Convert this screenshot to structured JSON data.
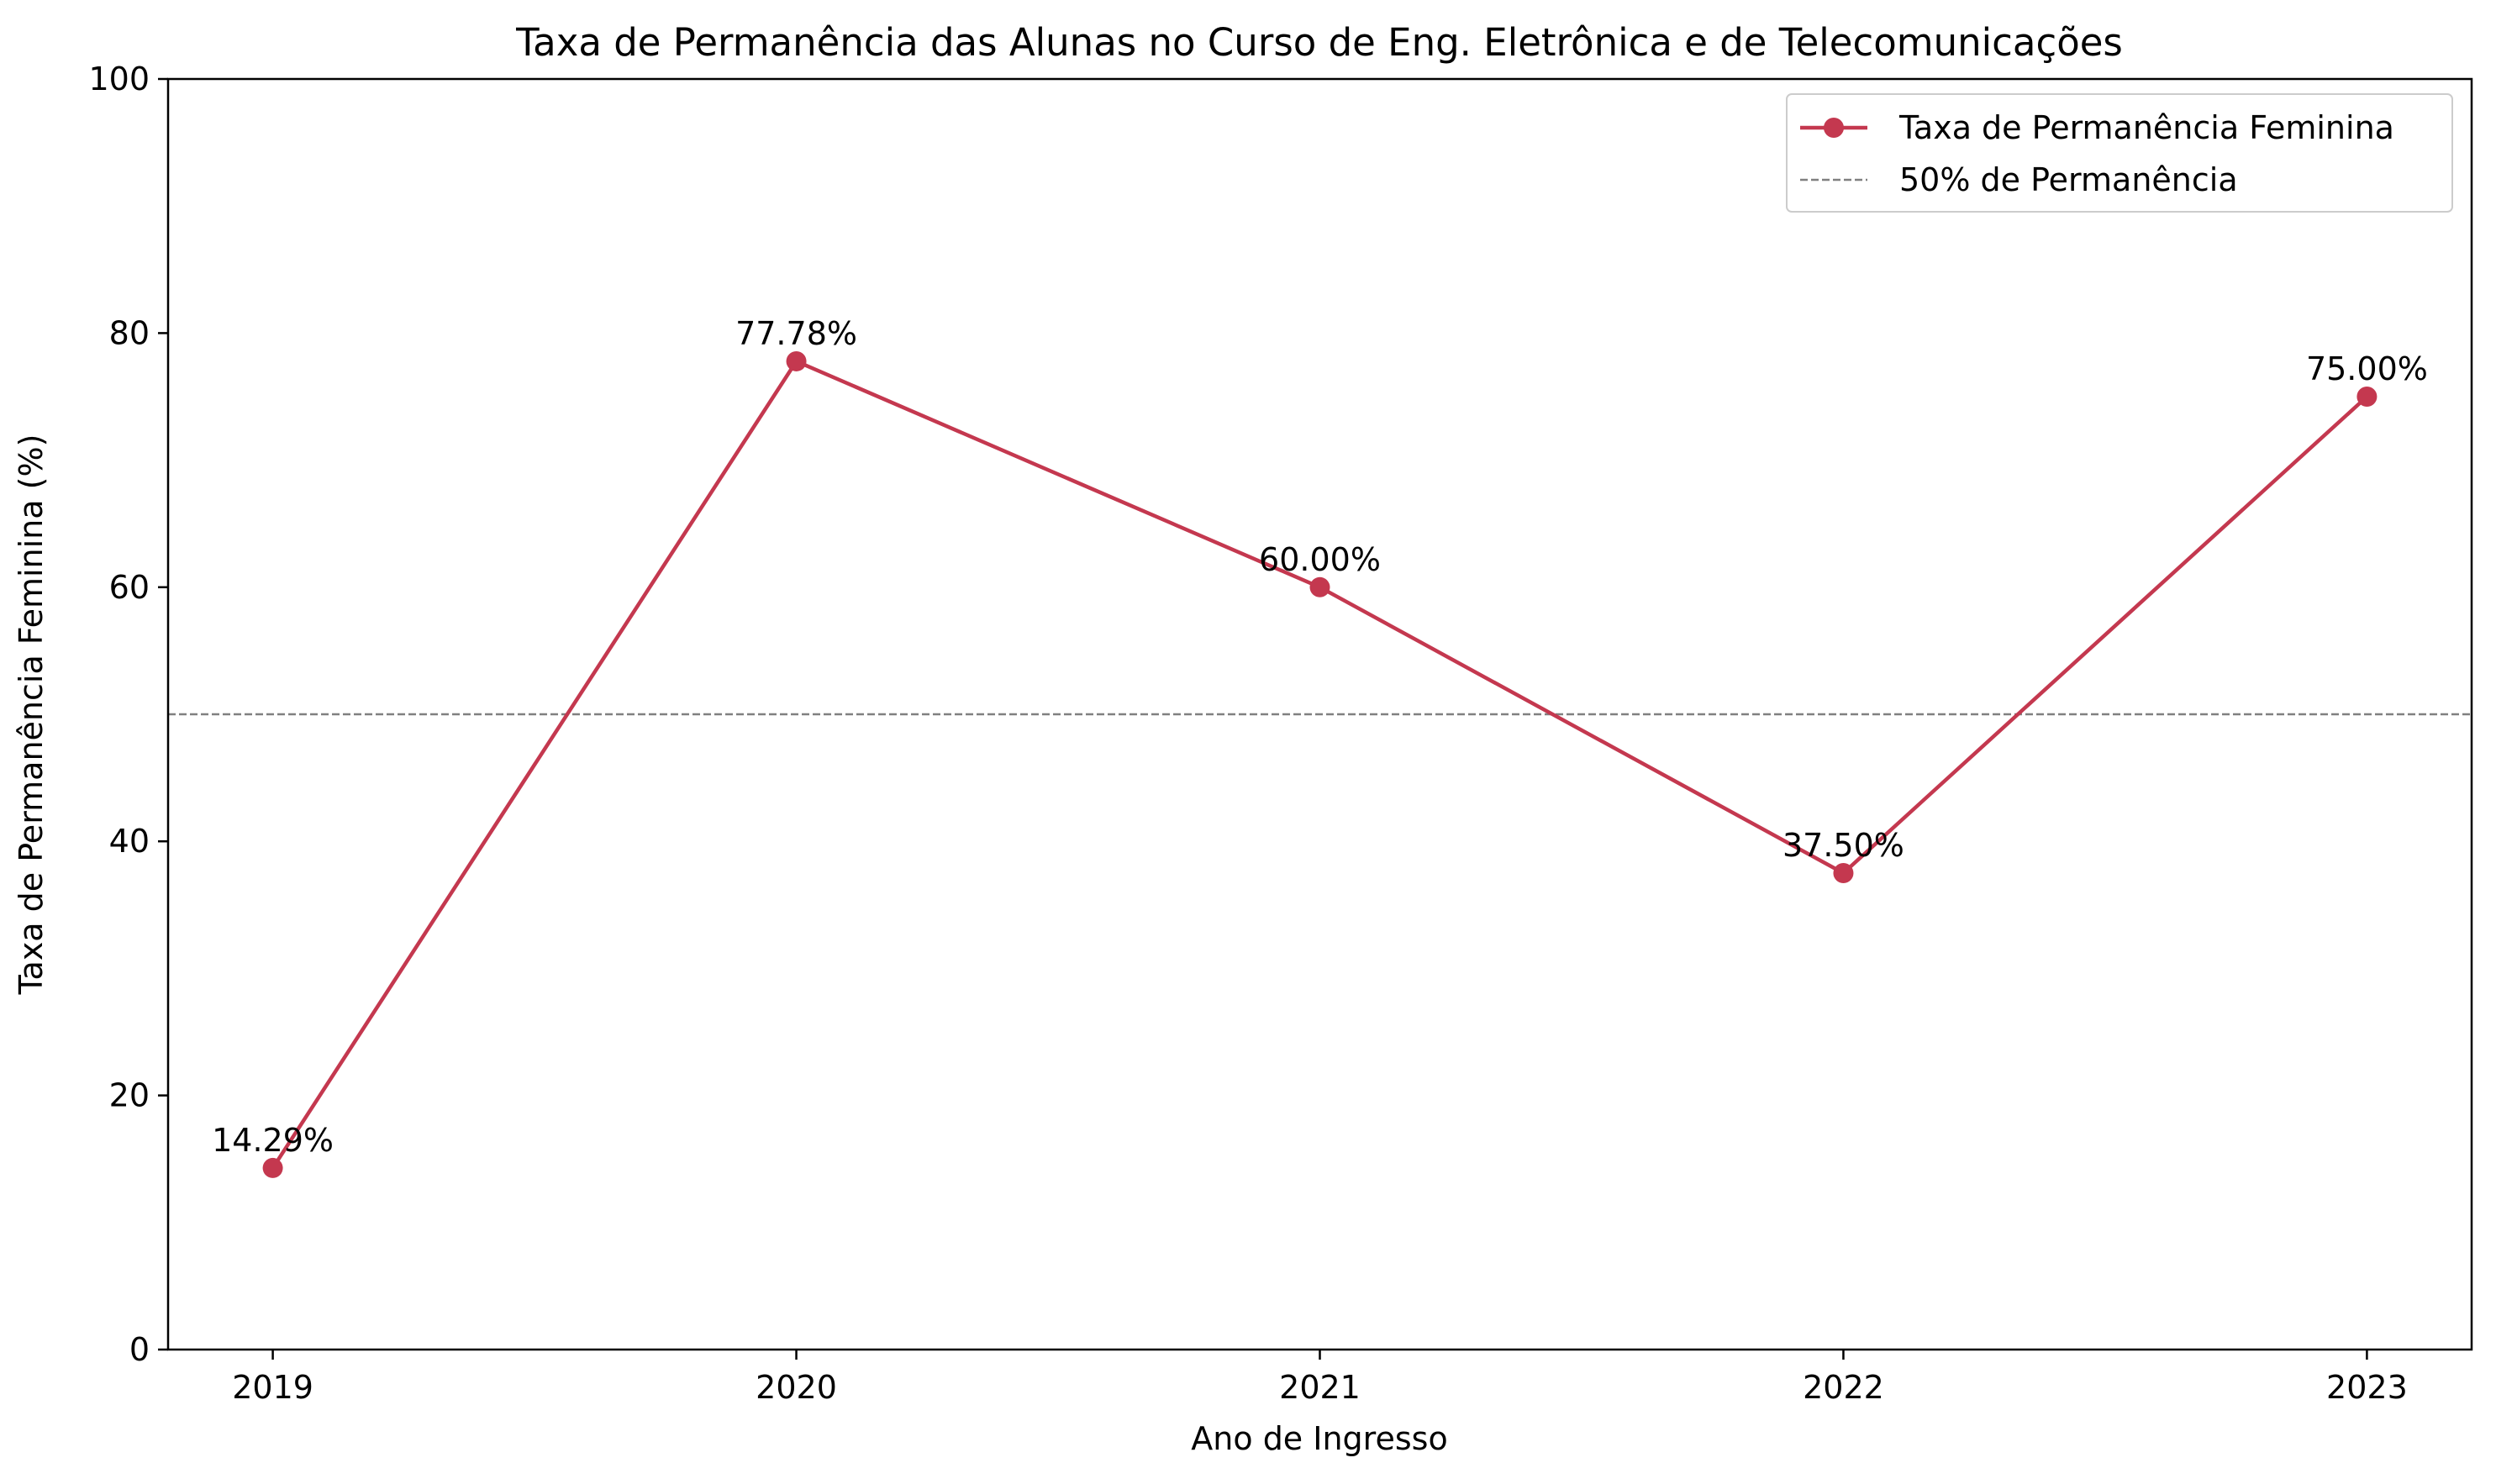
{
  "chart_data": {
    "type": "line",
    "title": "Taxa de Permanência das Alunas no Curso de Eng. Eletrônica e de Telecomunicações",
    "xlabel": "Ano de Ingresso",
    "ylabel": "Taxa de Permanência Feminina (%)",
    "categories": [
      "2019",
      "2020",
      "2021",
      "2022",
      "2023"
    ],
    "xlim": [
      2018.8,
      2023.2
    ],
    "ylim": [
      0,
      100
    ],
    "yticks": [
      0,
      20,
      40,
      60,
      80,
      100
    ],
    "grid": false,
    "legend_position": "top-right",
    "series": [
      {
        "name": "Taxa de Permanência Feminina",
        "values": [
          14.29,
          77.78,
          60.0,
          37.5,
          75.0
        ],
        "data_labels": [
          "14.29%",
          "77.78%",
          "60.00%",
          "37.50%",
          "75.00%"
        ],
        "color": "#c4384f",
        "marker": "circle"
      }
    ],
    "reference_lines": [
      {
        "name": "50% de Permanência",
        "value": 50,
        "color": "#808080",
        "style": "dashed"
      }
    ]
  }
}
